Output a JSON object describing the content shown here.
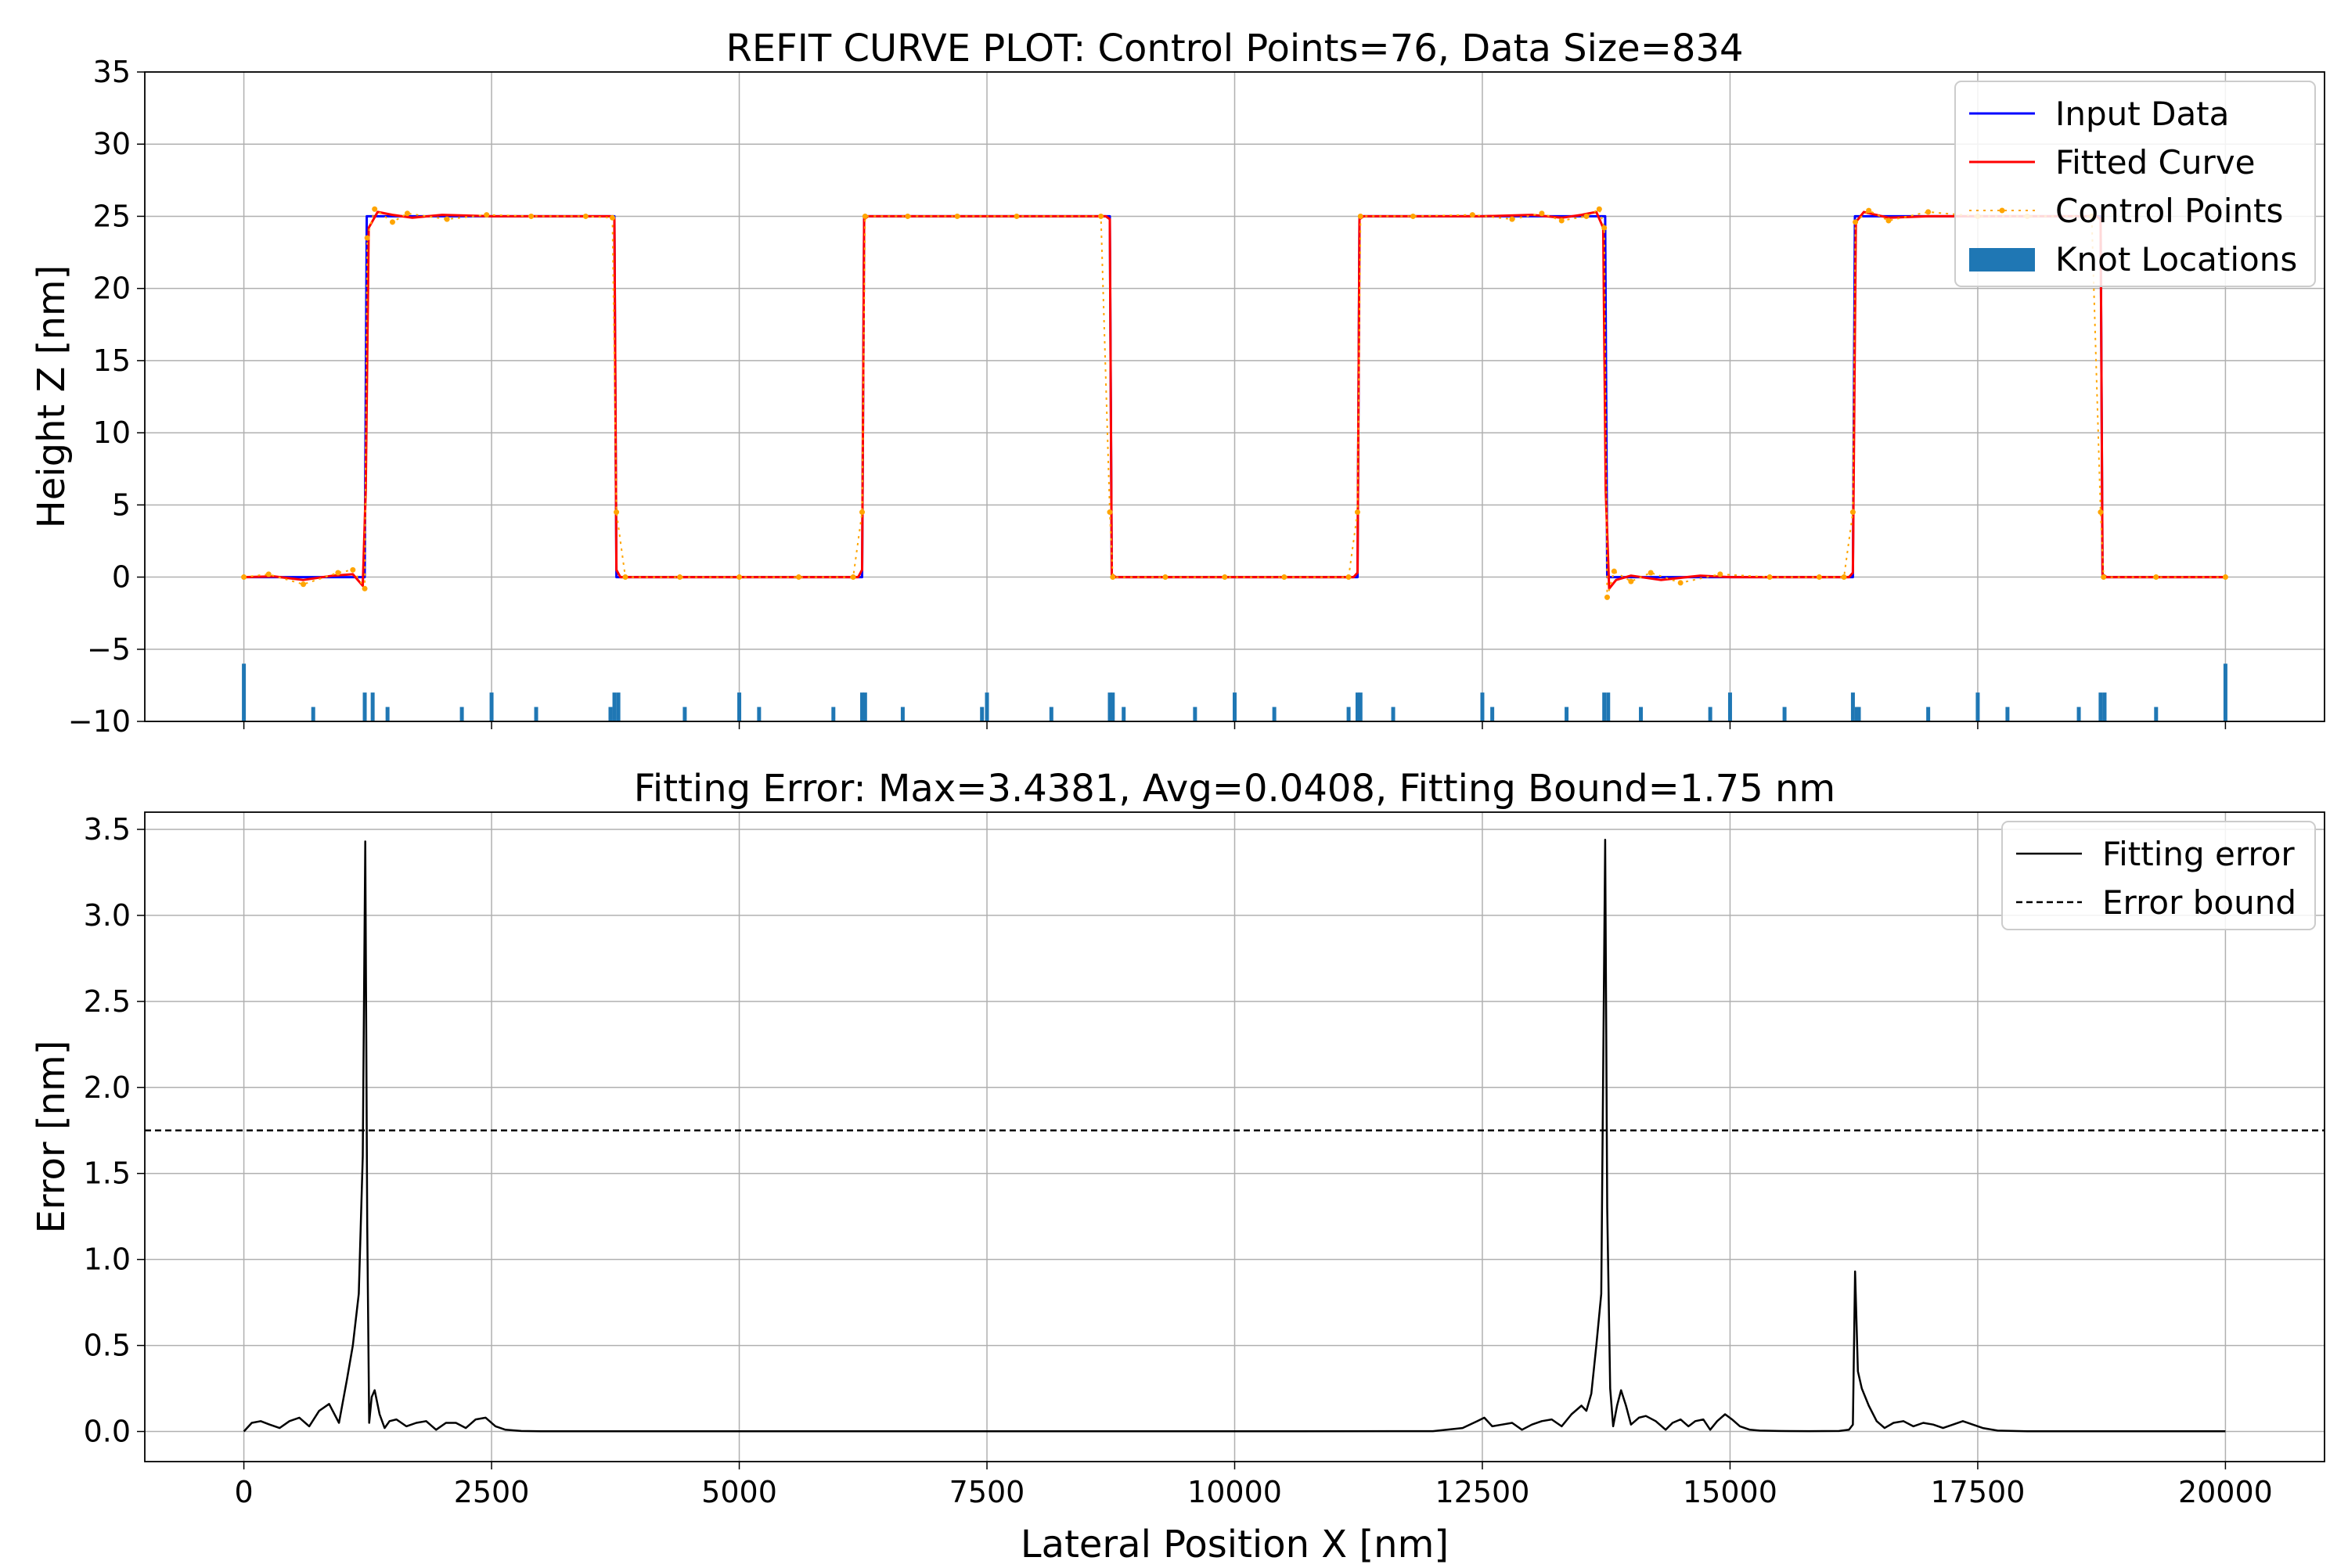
{
  "colors": {
    "input_data": "#0000ff",
    "fitted_curve": "#ff0000",
    "control_points": "#ffa500",
    "knots": "#1f77b4",
    "error": "#000000",
    "grid": "#b0b0b0"
  },
  "chart_data": [
    {
      "type": "line",
      "title": "REFIT CURVE PLOT: Control Points=76, Data Size=834",
      "xlabel": "",
      "ylabel": "Height Z [nm]",
      "xlim": [
        -1000,
        21000
      ],
      "ylim": [
        -10,
        35
      ],
      "xticks": [
        0,
        2500,
        5000,
        7500,
        10000,
        12500,
        15000,
        17500,
        20000
      ],
      "xtick_labels": [
        "",
        "",
        "",
        "",
        "",
        "",
        "",
        "",
        ""
      ],
      "yticks": [
        -10,
        -5,
        0,
        5,
        10,
        15,
        20,
        25,
        30,
        35
      ],
      "ytick_labels": [
        "−10",
        "−5",
        "0",
        "5",
        "10",
        "15",
        "20",
        "25",
        "30",
        "35"
      ],
      "grid": true,
      "legend_position": "top-right",
      "series": [
        {
          "name": "Input Data",
          "style": "line",
          "x": [
            0,
            1220,
            1240,
            3740,
            3760,
            6240,
            6260,
            8740,
            8760,
            11240,
            11260,
            13740,
            13760,
            16240,
            16260,
            18740,
            18760,
            20000
          ],
          "y": [
            0,
            0,
            25,
            25,
            0,
            0,
            25,
            25,
            0,
            0,
            25,
            25,
            0,
            0,
            25,
            25,
            0,
            0
          ]
        },
        {
          "name": "Fitted Curve",
          "style": "line",
          "x": [
            0,
            300,
            600,
            900,
            1100,
            1200,
            1230,
            1260,
            1350,
            1500,
            1700,
            2000,
            2500,
            3000,
            3700,
            3740,
            3760,
            3800,
            6200,
            6240,
            6260,
            6300,
            8700,
            8740,
            8760,
            8800,
            11200,
            11240,
            11260,
            11300,
            12500,
            13000,
            13300,
            13500,
            13650,
            13720,
            13745,
            13780,
            13850,
            14000,
            14300,
            14700,
            15000,
            16200,
            16240,
            16270,
            16350,
            16600,
            17000,
            17500,
            18700,
            18740,
            18760,
            18800,
            20000
          ],
          "y": [
            0,
            0.05,
            -0.2,
            0.1,
            0.2,
            -0.6,
            6,
            24.2,
            25.3,
            25.1,
            24.9,
            25.1,
            25,
            25,
            25,
            24.8,
            0.5,
            0,
            0,
            0.5,
            24.8,
            25,
            25,
            24.8,
            0.2,
            0,
            0,
            0.3,
            24.8,
            25,
            25,
            25.1,
            24.9,
            25.1,
            25.3,
            24.2,
            6,
            -0.8,
            -0.2,
            0.1,
            -0.2,
            0.1,
            0,
            0,
            0.3,
            24.6,
            25.3,
            24.9,
            25,
            25,
            25,
            24.8,
            0.2,
            0,
            0
          ]
        },
        {
          "name": "Control Points",
          "style": "dotted",
          "x": [
            0,
            250,
            600,
            950,
            1100,
            1220,
            1245,
            1320,
            1500,
            1650,
            2050,
            2450,
            2900,
            3450,
            3720,
            3760,
            3850,
            4400,
            5000,
            5600,
            6150,
            6240,
            6270,
            6700,
            7200,
            7800,
            8650,
            8740,
            8770,
            9300,
            9900,
            10500,
            11150,
            11240,
            11270,
            11800,
            12400,
            12800,
            13100,
            13300,
            13550,
            13680,
            13730,
            13760,
            13830,
            14000,
            14200,
            14500,
            14900,
            15400,
            15900,
            16150,
            16240,
            16265,
            16400,
            16600,
            17000,
            17500,
            18000,
            18650,
            18740,
            18770,
            19300,
            20000
          ],
          "y": [
            0,
            0.2,
            -0.5,
            0.3,
            0.5,
            -0.8,
            23.5,
            25.5,
            24.6,
            25.2,
            24.8,
            25.1,
            25,
            25,
            24.9,
            4.5,
            0,
            0,
            0,
            0,
            0,
            4.5,
            25,
            25,
            25,
            25,
            25,
            4.5,
            0,
            0,
            0,
            0,
            0,
            4.5,
            25,
            25,
            25.1,
            24.8,
            25.2,
            24.7,
            25,
            25.5,
            24.2,
            -1.4,
            0.4,
            -0.3,
            0.3,
            -0.4,
            0.2,
            0,
            0,
            0,
            4.5,
            24.6,
            25.4,
            24.7,
            25.3,
            25,
            25,
            25,
            4.5,
            0,
            0,
            0
          ]
        },
        {
          "name": "Knot Locations",
          "style": "bar",
          "x": [
            0,
            700,
            1220,
            1300,
            1450,
            2200,
            2500,
            2950,
            3700,
            3740,
            3780,
            4450,
            5000,
            5200,
            5950,
            6240,
            6270,
            6650,
            7450,
            7500,
            8150,
            8740,
            8770,
            8880,
            9600,
            10000,
            10400,
            11150,
            11240,
            11270,
            11600,
            12500,
            12600,
            13350,
            13730,
            13770,
            14100,
            14800,
            15000,
            15550,
            16240,
            16280,
            16300,
            17000,
            17500,
            17800,
            18520,
            18740,
            18780,
            19300,
            20000
          ],
          "y": [
            4,
            1,
            2,
            2,
            1,
            1,
            2,
            1,
            1,
            2,
            2,
            1,
            2,
            1,
            1,
            2,
            2,
            1,
            1,
            2,
            1,
            2,
            2,
            1,
            1,
            2,
            1,
            1,
            2,
            2,
            1,
            2,
            1,
            1,
            2,
            2,
            1,
            1,
            2,
            1,
            2,
            1,
            1,
            1,
            2,
            1,
            1,
            2,
            2,
            1,
            4
          ]
        }
      ]
    },
    {
      "type": "line",
      "title": "Fitting Error: Max=3.4381, Avg=0.0408, Fitting Bound=1.75 nm",
      "xlabel": "Lateral Position X [nm]",
      "ylabel": "Error [nm]",
      "xlim": [
        -1000,
        21000
      ],
      "ylim": [
        -0.175,
        3.6
      ],
      "xticks": [
        0,
        2500,
        5000,
        7500,
        10000,
        12500,
        15000,
        17500,
        20000
      ],
      "xtick_labels": [
        "0",
        "2500",
        "5000",
        "7500",
        "10000",
        "12500",
        "15000",
        "17500",
        "20000"
      ],
      "yticks": [
        0,
        0.5,
        1.0,
        1.5,
        2.0,
        2.5,
        3.0,
        3.5
      ],
      "ytick_labels": [
        "0.0",
        "0.5",
        "1.0",
        "1.5",
        "2.0",
        "2.5",
        "3.0",
        "3.5"
      ],
      "grid": true,
      "legend_position": "top-right",
      "series": [
        {
          "name": "Fitting error",
          "style": "line",
          "x": [
            0,
            80,
            170,
            260,
            360,
            460,
            560,
            660,
            760,
            860,
            960,
            1040,
            1100,
            1160,
            1200,
            1225,
            1245,
            1265,
            1290,
            1320,
            1370,
            1420,
            1470,
            1540,
            1640,
            1740,
            1840,
            1940,
            2040,
            2140,
            2240,
            2340,
            2440,
            2540,
            2640,
            2800,
            3000,
            5000,
            7500,
            10000,
            12000,
            12300,
            12450,
            12520,
            12600,
            12700,
            12800,
            12900,
            13000,
            13100,
            13200,
            13300,
            13400,
            13500,
            13550,
            13600,
            13650,
            13700,
            13740,
            13760,
            13790,
            13820,
            13860,
            13900,
            13950,
            14000,
            14080,
            14150,
            14250,
            14350,
            14420,
            14500,
            14580,
            14650,
            14730,
            14800,
            14870,
            14950,
            15020,
            15100,
            15200,
            15300,
            15500,
            15800,
            16100,
            16200,
            16240,
            16262,
            16290,
            16330,
            16400,
            16480,
            16560,
            16650,
            16750,
            16850,
            16950,
            17050,
            17150,
            17250,
            17350,
            17450,
            17550,
            17700,
            18000,
            20000
          ],
          "y": [
            0,
            0.05,
            0.06,
            0.04,
            0.02,
            0.06,
            0.08,
            0.03,
            0.12,
            0.16,
            0.05,
            0.3,
            0.5,
            0.8,
            1.6,
            3.43,
            1.2,
            0.05,
            0.2,
            0.24,
            0.1,
            0.02,
            0.06,
            0.07,
            0.03,
            0.05,
            0.06,
            0.01,
            0.05,
            0.05,
            0.02,
            0.07,
            0.08,
            0.03,
            0.01,
            0.003,
            0.001,
            0.001,
            0.001,
            0.001,
            0.002,
            0.02,
            0.06,
            0.08,
            0.03,
            0.04,
            0.05,
            0.01,
            0.04,
            0.06,
            0.07,
            0.03,
            0.1,
            0.15,
            0.12,
            0.22,
            0.5,
            0.8,
            3.44,
            1.3,
            0.25,
            0.03,
            0.15,
            0.24,
            0.15,
            0.04,
            0.08,
            0.09,
            0.06,
            0.01,
            0.05,
            0.07,
            0.03,
            0.06,
            0.07,
            0.01,
            0.06,
            0.1,
            0.07,
            0.03,
            0.01,
            0.005,
            0.003,
            0.002,
            0.003,
            0.01,
            0.04,
            0.93,
            0.35,
            0.25,
            0.15,
            0.06,
            0.02,
            0.05,
            0.06,
            0.03,
            0.05,
            0.04,
            0.02,
            0.04,
            0.06,
            0.04,
            0.02,
            0.005,
            0.001,
            0.001
          ]
        },
        {
          "name": "Error bound",
          "style": "dashed",
          "x": [
            -1000,
            21000
          ],
          "y": [
            1.75,
            1.75
          ]
        }
      ]
    }
  ]
}
